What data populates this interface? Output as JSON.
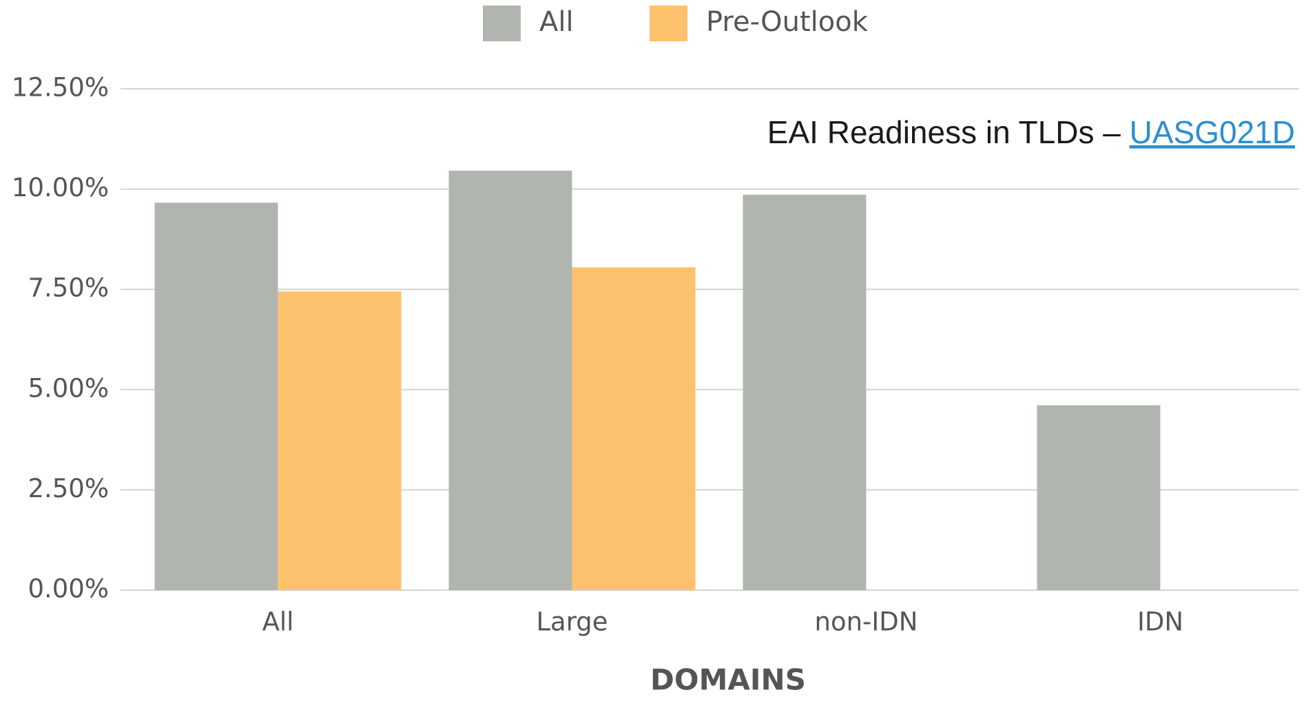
{
  "chart_data": {
    "type": "bar",
    "categories": [
      "All",
      "Large",
      "non-IDN",
      "IDN"
    ],
    "series": [
      {
        "name": "All",
        "color": "#b1b5b0",
        "values": [
          9.66,
          10.46,
          9.86,
          4.61
        ]
      },
      {
        "name": "Pre-Outlook",
        "color": "#fec26e",
        "values": [
          7.45,
          8.05,
          null,
          null
        ]
      }
    ],
    "ylim": [
      0,
      12.5
    ],
    "yticks": [
      {
        "value": 0,
        "label": "0.00%"
      },
      {
        "value": 2.5,
        "label": "2.50%"
      },
      {
        "value": 5,
        "label": "5.00%"
      },
      {
        "value": 7.5,
        "label": "7.50%"
      },
      {
        "value": 10,
        "label": "10.00%"
      },
      {
        "value": 12.5,
        "label": "12.50%"
      }
    ],
    "grid": true,
    "xlabel": "DOMAINS",
    "annotation": {
      "text": "EAI Readiness in TLDs – ",
      "link": "UASG021D"
    }
  }
}
